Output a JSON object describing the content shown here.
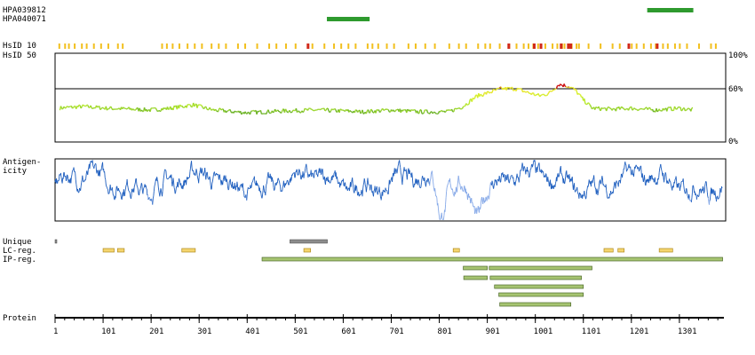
{
  "labels": {
    "antibody_1": "HPA039812",
    "antibody_2": "HPA040071",
    "hsid10": "HsID 10",
    "hsid50": "HsID 50",
    "antigenicity_1": "Antigen-",
    "antigenicity_2": "icity",
    "unique": "Unique",
    "lc_reg": "LC-reg.",
    "ip_reg": "IP-reg.",
    "protein": "Protein",
    "pct_100": "100%",
    "pct_60": "60%",
    "pct_0": "0%"
  },
  "chart_data": {
    "type": "protein-feature-track",
    "x_range": [
      1,
      1390
    ],
    "x_ticks": [
      "1",
      "101",
      "201",
      "301",
      "401",
      "501",
      "601",
      "701",
      "801",
      "901",
      "1001",
      "1101",
      "1201",
      "1301"
    ],
    "x_tick_values": [
      1,
      101,
      201,
      301,
      401,
      501,
      601,
      701,
      801,
      901,
      1001,
      1101,
      1201,
      1301
    ],
    "antibodies": [
      {
        "name": "HPA039812",
        "start": 1234,
        "end": 1330
      },
      {
        "name": "HPA040071",
        "start": 567,
        "end": 656
      }
    ],
    "hsid_threshold_pct": 60,
    "hsid_ylim": [
      0,
      100
    ],
    "hsid50_profile": [
      [
        1,
        38
      ],
      [
        60,
        40
      ],
      [
        110,
        38
      ],
      [
        160,
        37
      ],
      [
        200,
        36
      ],
      [
        240,
        38
      ],
      [
        290,
        42
      ],
      [
        300,
        40
      ],
      [
        330,
        36
      ],
      [
        400,
        33
      ],
      [
        480,
        35
      ],
      [
        540,
        36
      ],
      [
        600,
        35
      ],
      [
        640,
        34
      ],
      [
        700,
        36
      ],
      [
        760,
        34
      ],
      [
        820,
        34
      ],
      [
        850,
        40
      ],
      [
        880,
        52
      ],
      [
        900,
        55
      ],
      [
        930,
        60
      ],
      [
        960,
        60
      ],
      [
        990,
        55
      ],
      [
        1010,
        52
      ],
      [
        1030,
        55
      ],
      [
        1050,
        65
      ],
      [
        1070,
        63
      ],
      [
        1085,
        58
      ],
      [
        1100,
        48
      ],
      [
        1120,
        38
      ],
      [
        1160,
        37
      ],
      [
        1200,
        38
      ],
      [
        1250,
        36
      ],
      [
        1300,
        38
      ],
      [
        1330,
        36
      ]
    ],
    "hsid10_marks_yellow": [
      8,
      20,
      28,
      40,
      55,
      65,
      80,
      95,
      110,
      130,
      140,
      222,
      232,
      244,
      258,
      275,
      290,
      305,
      325,
      340,
      355,
      380,
      395,
      420,
      445,
      460,
      480,
      500,
      535,
      560,
      580,
      595,
      610,
      625,
      650,
      660,
      672,
      690,
      705,
      735,
      750,
      770,
      790,
      820,
      840,
      855,
      880,
      895,
      905,
      925,
      945,
      960,
      975,
      985,
      995,
      1005,
      1020,
      1035,
      1045,
      1055,
      1060,
      1075,
      1085,
      1090,
      1110,
      1135,
      1160,
      1175,
      1200,
      1210,
      1225,
      1240,
      1250,
      1265,
      1275,
      1290,
      1300,
      1315,
      1340,
      1365,
      1375
    ],
    "hsid10_marks_red": [
      525,
      943,
      996,
      1010,
      1052,
      1067,
      1072,
      1193,
      1252
    ],
    "unique": [
      {
        "start": 1,
        "end": 3
      },
      {
        "start": 490,
        "end": 568
      }
    ],
    "lc_regions": [
      {
        "start": 101,
        "end": 124
      },
      {
        "start": 131,
        "end": 145
      },
      {
        "start": 265,
        "end": 293
      },
      {
        "start": 519,
        "end": 533
      },
      {
        "start": 830,
        "end": 843
      },
      {
        "start": 1144,
        "end": 1163
      },
      {
        "start": 1173,
        "end": 1186
      },
      {
        "start": 1259,
        "end": 1287
      }
    ],
    "ip_regions": [
      {
        "start": 432,
        "end": 1391
      },
      {
        "start": 851,
        "end": 901
      },
      {
        "start": 905,
        "end": 1119
      },
      {
        "start": 852,
        "end": 901
      },
      {
        "start": 907,
        "end": 1097
      },
      {
        "start": 916,
        "end": 1101
      },
      {
        "start": 925,
        "end": 1101
      },
      {
        "start": 927,
        "end": 1075
      }
    ],
    "antigenicity_ylim": [
      0,
      1
    ]
  },
  "colors": {
    "antibody": "#2e9a2e",
    "hsid_yellow": "#f2c01f",
    "hsid_red": "#d12a1a",
    "frame": "#000000",
    "unique": "#8c8c8c",
    "lc_fill": "#f5d56e",
    "lc_border": "#b08a20",
    "ip_fill": "#a6c471",
    "ip_border": "#4e6a2a",
    "antigenicity_dark": "#1f5fbf",
    "antigenicity_light": "#86a9e8"
  }
}
